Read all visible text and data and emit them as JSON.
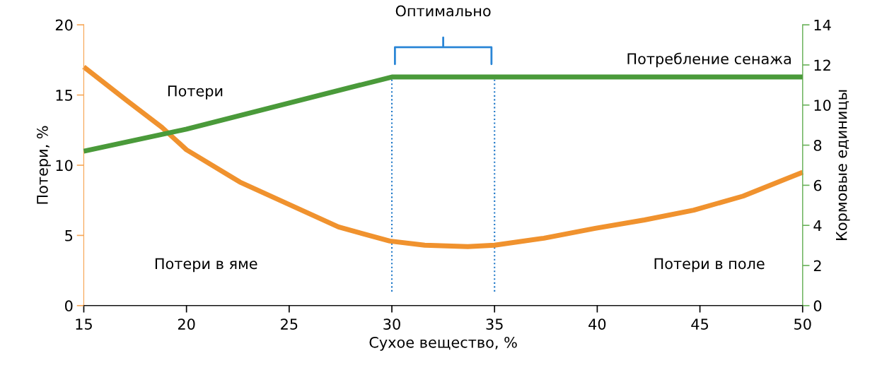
{
  "chart_data": {
    "type": "line",
    "xlabel": "Сухое вещество, %",
    "ylabel": "Потери, %",
    "y2label": "Кормовые единицы",
    "xlim": [
      15,
      50
    ],
    "xticks": [
      15,
      20,
      25,
      30,
      35,
      40,
      45,
      50
    ],
    "ylim": [
      0,
      20
    ],
    "yticks": [
      0,
      5,
      10,
      15,
      20
    ],
    "y2lim": [
      0,
      14
    ],
    "y2ticks": [
      0,
      2,
      4,
      6,
      8,
      10,
      12,
      14
    ],
    "grid": false,
    "legend": false,
    "marker": "none",
    "line_style": "solid",
    "series": [
      {
        "color": "#f0922e",
        "x": [
          15,
          17.1,
          18.8,
          20,
          22.6,
          25,
          27.4,
          29.9,
          31.6,
          33.7,
          35,
          37.4,
          39.9,
          42.3,
          44.7,
          47.1,
          50
        ],
        "values": [
          17,
          14.6,
          12.7,
          11.1,
          8.8,
          7.2,
          5.6,
          4.6,
          4.3,
          4.2,
          4.3,
          4.8,
          5.5,
          6.1,
          6.8,
          7.8,
          9.5
        ]
      },
      {
        "color": "#4a9a3a",
        "axis": "y2",
        "x": [
          15,
          20,
          25,
          30,
          50
        ],
        "values": [
          7.7,
          8.8,
          10.1,
          11.4,
          11.4
        ]
      }
    ],
    "ref_lines": [
      {
        "axis": "x",
        "value": 30,
        "color": "#1f78c8",
        "line_style": "dotted"
      },
      {
        "axis": "x",
        "value": 35,
        "color": "#1f78c8",
        "line_style": "dotted"
      }
    ],
    "annotations": [
      "Оптимально",
      "Потери",
      "Потребление сенажа",
      "Потери в яме",
      "Потери в поле"
    ]
  }
}
